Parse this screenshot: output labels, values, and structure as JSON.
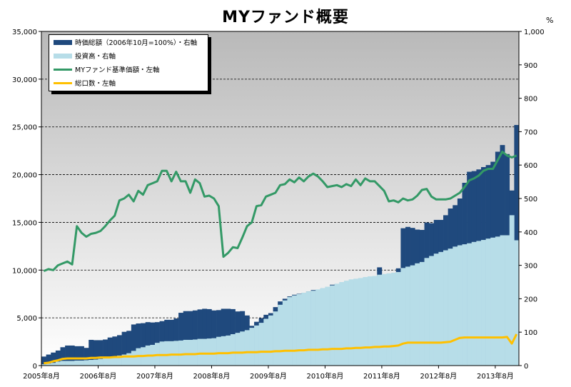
{
  "chart_data": {
    "type": "bar",
    "title": "MYファンド概要",
    "right_axis_unit": "%",
    "x_tick_labels": [
      "2005年8月",
      "2006年8月",
      "2007年8月",
      "2008年8月",
      "2009年8月",
      "2010年8月",
      "2011年8月",
      "2012年8月",
      "2013年8月"
    ],
    "left_axis": {
      "ylim": [
        0,
        35000
      ],
      "ticks": [
        "0",
        "5,000",
        "10,000",
        "15,000",
        "20,000",
        "25,000",
        "30,000",
        "35,000"
      ]
    },
    "right_axis": {
      "ylim": [
        0,
        1000
      ],
      "ticks": [
        "0",
        "100",
        "200",
        "300",
        "400",
        "500",
        "600",
        "700",
        "800",
        "900",
        "1,000"
      ]
    },
    "grid": true,
    "legend_position": "top-left",
    "colors": {
      "market_value": "#1f497d",
      "investment": "#b7dde8",
      "nav": "#339966",
      "units": "#ffc000"
    },
    "legend": [
      {
        "label": "時価総額（2006年10月=100%）・右軸",
        "color": "#1f497d",
        "kind": "bar"
      },
      {
        "label": "投資高・右軸",
        "color": "#b7dde8",
        "kind": "bar"
      },
      {
        "label": "MYファンド基準価額・左軸",
        "color": "#339966",
        "kind": "line"
      },
      {
        "label": "総口数・左軸",
        "color": "#ffc000",
        "kind": "line"
      }
    ],
    "months": 101,
    "series": [
      {
        "name": "時価総額（2006年10月=100%）・右軸",
        "axis": "right",
        "values": [
          27,
          33,
          39,
          45,
          55,
          60,
          60,
          58,
          58,
          53,
          77,
          76,
          76,
          78,
          84,
          87,
          91,
          101,
          104,
          123,
          126,
          127,
          130,
          129,
          130,
          133,
          137,
          137,
          141,
          158,
          163,
          163,
          165,
          168,
          170,
          169,
          165,
          166,
          170,
          170,
          169,
          162,
          163,
          150,
          119,
          131,
          142,
          152,
          157,
          175,
          192,
          200,
          207,
          212,
          215,
          217,
          222,
          226,
          224,
          230,
          232,
          242,
          244,
          242,
          243,
          249,
          252,
          256,
          255,
          260,
          266,
          294,
          59,
          62,
          152,
          291,
          411,
          415,
          412,
          407,
          406,
          428,
          426,
          436,
          436,
          450,
          470,
          480,
          500,
          547,
          580,
          582,
          587,
          594,
          600,
          610,
          640,
          660,
          633,
          524,
          720
        ]
      },
      {
        "name": "投資高・右軸",
        "axis": "right",
        "values": [
          4,
          6,
          8,
          12,
          14,
          14,
          14,
          15,
          15,
          16,
          17,
          18,
          20,
          22,
          24,
          26,
          30,
          33,
          37,
          44,
          52,
          55,
          60,
          62,
          68,
          72,
          73,
          73,
          74,
          75,
          77,
          77,
          78,
          80,
          80,
          81,
          82,
          86,
          88,
          90,
          94,
          98,
          102,
          106,
          113,
          120,
          128,
          140,
          150,
          162,
          182,
          195,
          205,
          210,
          214,
          218,
          222,
          224,
          228,
          232,
          236,
          240,
          245,
          250,
          254,
          258,
          260,
          262,
          265,
          267,
          268,
          272,
          274,
          276,
          278,
          280,
          292,
          296,
          300,
          306,
          310,
          322,
          328,
          335,
          340,
          345,
          350,
          356,
          360,
          363,
          366,
          370,
          373,
          376,
          380,
          383,
          386,
          390,
          390,
          450,
          375
        ]
      },
      {
        "name": "MYファンド基準価額・左軸",
        "axis": "left",
        "values": [
          9900,
          10100,
          10000,
          10500,
          10700,
          10900,
          10600,
          14600,
          13900,
          13500,
          13800,
          13900,
          14100,
          14600,
          15200,
          15700,
          17300,
          17500,
          17900,
          17200,
          18300,
          17900,
          18900,
          19100,
          19300,
          20400,
          20400,
          19300,
          20300,
          19300,
          19300,
          18100,
          19500,
          19100,
          17700,
          17800,
          17500,
          16700,
          11400,
          11800,
          12400,
          12300,
          13400,
          14600,
          15000,
          16700,
          16800,
          17700,
          17900,
          18100,
          18900,
          19000,
          19500,
          19200,
          19700,
          19300,
          19800,
          20100,
          19800,
          19300,
          18700,
          18800,
          18900,
          18700,
          19000,
          18800,
          19500,
          18900,
          19600,
          19300,
          19300,
          18800,
          18300,
          17200,
          17300,
          17100,
          17500,
          17300,
          17400,
          17800,
          18400,
          18500,
          17700,
          17400,
          17400,
          17400,
          17500,
          17800,
          18100,
          18700,
          19400,
          19600,
          19900,
          20400,
          20600,
          20600,
          21500,
          22400,
          22000,
          21800,
          22000
        ]
      },
      {
        "name": "総口数・左軸",
        "axis": "left",
        "values": [
          250,
          300,
          450,
          550,
          700,
          750,
          750,
          750,
          750,
          750,
          800,
          800,
          850,
          850,
          850,
          900,
          900,
          950,
          950,
          950,
          1000,
          1000,
          1050,
          1050,
          1100,
          1100,
          1100,
          1150,
          1150,
          1150,
          1200,
          1200,
          1200,
          1250,
          1250,
          1250,
          1250,
          1300,
          1300,
          1300,
          1350,
          1350,
          1350,
          1400,
          1400,
          1400,
          1450,
          1450,
          1450,
          1500,
          1500,
          1550,
          1550,
          1550,
          1600,
          1600,
          1650,
          1650,
          1650,
          1700,
          1700,
          1750,
          1750,
          1750,
          1800,
          1800,
          1850,
          1850,
          1900,
          1900,
          1950,
          1950,
          2000,
          2000,
          2050,
          2100,
          2300,
          2400,
          2400,
          2400,
          2400,
          2400,
          2400,
          2400,
          2400,
          2450,
          2500,
          2700,
          2900,
          2950,
          2950,
          2950,
          2950,
          2950,
          2950,
          2950,
          2950,
          2950,
          3000,
          2300,
          3300
        ]
      }
    ]
  }
}
